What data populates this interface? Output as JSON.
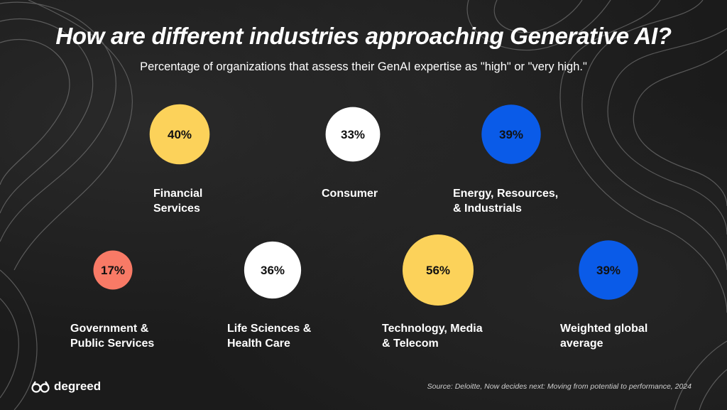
{
  "title": "How are different industries approaching Generative AI?",
  "subtitle": "Percentage of organizations that assess their GenAI expertise as \"high\" or \"very high.\"",
  "logo_text": "degreed",
  "source": "Source: Deloitte, Now decides next: Moving from potential to performance, 2024",
  "colors": {
    "yellow": "#fcd25a",
    "white": "#ffffff",
    "blue": "#0a5be8",
    "coral": "#f87a66"
  },
  "chart_data": {
    "type": "bubble",
    "unit": "%",
    "items": [
      {
        "label_lines": [
          "Financial",
          "Services"
        ],
        "value": 40,
        "display": "40%",
        "color": "#fcd25a"
      },
      {
        "label_lines": [
          "Consumer"
        ],
        "value": 33,
        "display": "33%",
        "color": "#ffffff"
      },
      {
        "label_lines": [
          "Energy, Resources,",
          "& Industrials"
        ],
        "value": 39,
        "display": "39%",
        "color": "#0a5be8"
      },
      {
        "label_lines": [
          "Government &",
          "Public Services"
        ],
        "value": 17,
        "display": "17%",
        "color": "#f87a66"
      },
      {
        "label_lines": [
          "Life Sciences &",
          "Health Care"
        ],
        "value": 36,
        "display": "36%",
        "color": "#ffffff"
      },
      {
        "label_lines": [
          "Technology, Media",
          "& Telecom"
        ],
        "value": 56,
        "display": "56%",
        "color": "#fcd25a"
      },
      {
        "label_lines": [
          "Weighted global",
          "average"
        ],
        "value": 39,
        "display": "39%",
        "color": "#0a5be8"
      }
    ]
  }
}
